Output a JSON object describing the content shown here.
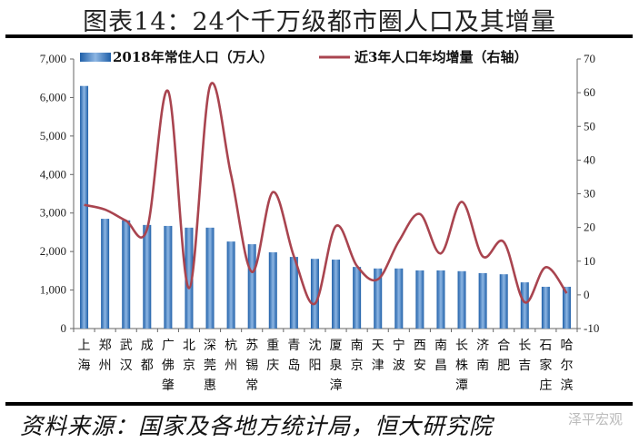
{
  "title": "图表14：24个千万级都市圈人口及其增量",
  "source": "资料来源：国家及各地方统计局，恒大研究院",
  "watermark": "泽平宏观",
  "colors": {
    "bar": "#2e75b6",
    "line": "#a9444f"
  },
  "chart_data": {
    "type": "bar+line",
    "categories": [
      "上海",
      "郑州",
      "武汉",
      "成都",
      "广佛肇",
      "北京",
      "深莞惠",
      "杭州",
      "苏锡常",
      "重庆",
      "青岛",
      "沈阳",
      "厦泉漳",
      "南京",
      "天津",
      "宁波",
      "西安",
      "南昌",
      "长株潭",
      "济南",
      "合肥",
      "长吉",
      "石家庄",
      "哈尔滨"
    ],
    "series": [
      {
        "name": "2018年常住人口（万人）",
        "type": "bar",
        "axis": "left",
        "values": [
          6300,
          2850,
          2810,
          2690,
          2665,
          2620,
          2620,
          2260,
          2190,
          1980,
          1860,
          1810,
          1790,
          1600,
          1560,
          1560,
          1510,
          1510,
          1490,
          1440,
          1410,
          1200,
          1085,
          1085
        ]
      },
      {
        "name": "近3年人口年均增量（右轴）",
        "type": "line",
        "axis": "right",
        "values": [
          26.7,
          25.3,
          22,
          19.5,
          60.5,
          2,
          62,
          35.7,
          6.8,
          30.5,
          11.4,
          -2.6,
          20.4,
          8.6,
          4.6,
          15.9,
          24,
          12.3,
          27.6,
          11.4,
          15.7,
          -2.2,
          8.2,
          0.5
        ]
      }
    ],
    "y_left": {
      "range": [
        0,
        7000
      ],
      "ticks": [
        "0",
        "1,000",
        "2,000",
        "3,000",
        "4,000",
        "5,000",
        "6,000",
        "7,000"
      ]
    },
    "y_right": {
      "range": [
        -10,
        70
      ],
      "ticks": [
        "-10",
        "0",
        "10",
        "20",
        "30",
        "40",
        "50",
        "60",
        "70"
      ]
    },
    "grid": false,
    "legend": "top"
  }
}
